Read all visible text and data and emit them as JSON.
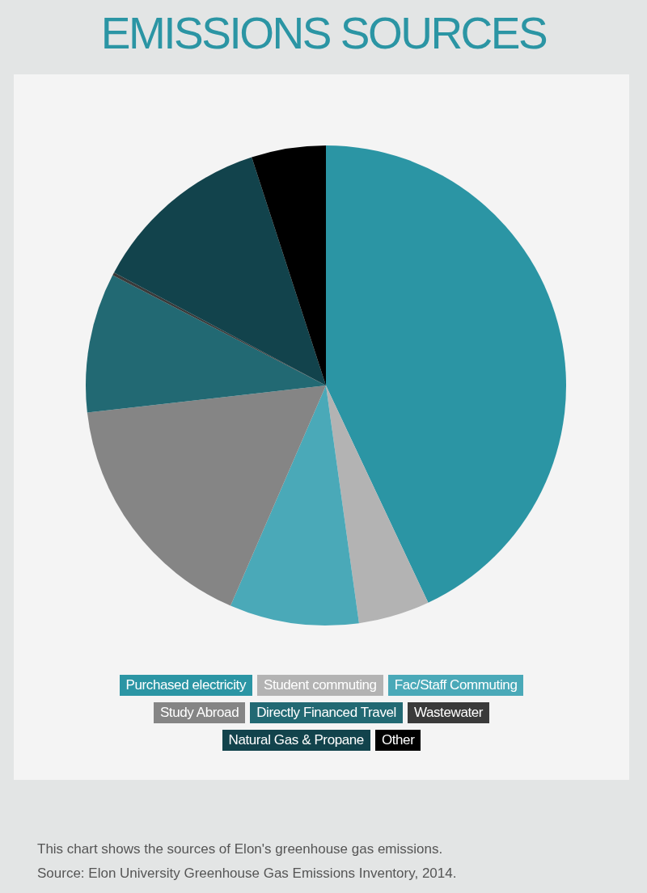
{
  "chart_data": {
    "type": "pie",
    "title": "EMISSIONS SOURCES",
    "categories": [
      "Purchased electricity",
      "Student commuting",
      "Fac/Staff Commuting",
      "Study Abroad",
      "Directly Financed Travel",
      "Wastewater",
      "Natural Gas & Propane",
      "Other"
    ],
    "values": [
      43,
      4.8,
      8.7,
      16.7,
      9.4,
      0.2,
      12.2,
      5
    ],
    "colors": [
      "#2b95a4",
      "#b3b3b3",
      "#4aa9b8",
      "#858585",
      "#226973",
      "#3a3a3a",
      "#12434c",
      "#000000"
    ],
    "legend": "bottom",
    "annotations": [
      "This chart shows the sources of Elon's greenhouse gas emissions.",
      "Source: Elon University Greenhouse Gas Emissions Inventory, 2014."
    ]
  }
}
